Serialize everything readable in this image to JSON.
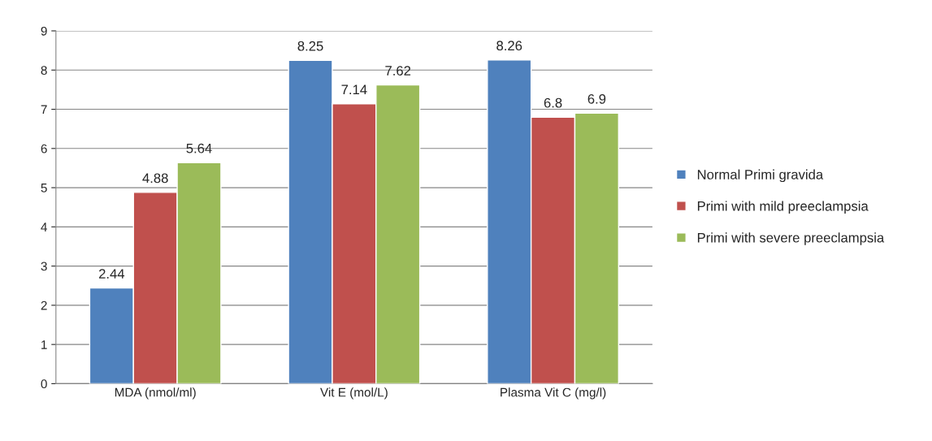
{
  "chart_data": {
    "type": "bar",
    "categories": [
      "MDA (nmol/ml)",
      "Vit E (mol/L)",
      "Plasma Vit C (mg/l)"
    ],
    "series": [
      {
        "name": "Normal Primi gravida",
        "color": "#4f81bd",
        "values": [
          2.44,
          8.25,
          8.26
        ]
      },
      {
        "name": "Primi with mild preeclampsia",
        "color": "#c0504d",
        "values": [
          4.88,
          7.14,
          6.8
        ]
      },
      {
        "name": "Primi with severe preeclampsia",
        "color": "#9bbb59",
        "values": [
          5.64,
          7.62,
          6.9
        ]
      }
    ],
    "ylim": [
      0,
      9
    ],
    "yticks": [
      0,
      1,
      2,
      3,
      4,
      5,
      6,
      7,
      8,
      9
    ],
    "grid": "y",
    "legend": "right",
    "data_labels": true
  }
}
